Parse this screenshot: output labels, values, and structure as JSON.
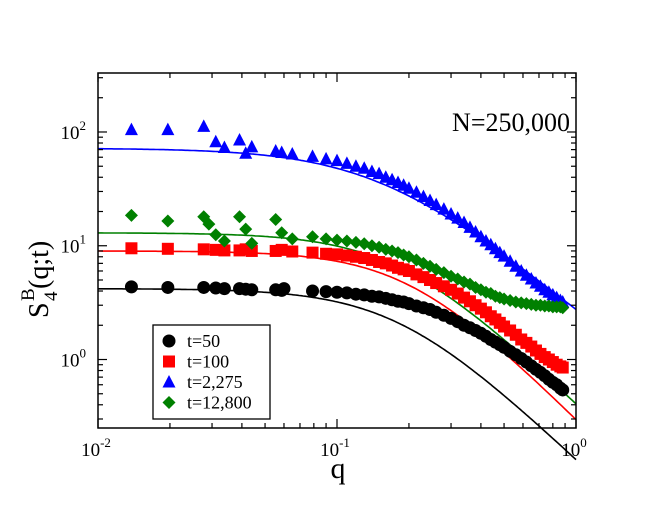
{
  "chart_data": {
    "type": "scatter",
    "title": "",
    "annotation": "N=250,000",
    "xlabel": "q",
    "ylabel": {
      "main": "S",
      "sub": "4",
      "sup": "B",
      "args": "(q;t)"
    },
    "xscale": "log",
    "yscale": "log",
    "xlim": [
      0.01,
      1
    ],
    "ylim": [
      0.25,
      330
    ],
    "x_ticks": [
      {
        "value": 0.01,
        "base": "10",
        "exp": "-2"
      },
      {
        "value": 0.1,
        "base": "10",
        "exp": "-1"
      },
      {
        "value": 1,
        "base": "10",
        "exp": "0"
      }
    ],
    "y_ticks": [
      {
        "value": 1,
        "base": "10",
        "exp": "0"
      },
      {
        "value": 10,
        "base": "10",
        "exp": "1"
      },
      {
        "value": 100,
        "base": "10",
        "exp": "2"
      }
    ],
    "legend_position": "bottom-left",
    "series": [
      {
        "name": "t=50",
        "marker": "circle",
        "color": "#000000",
        "points": [
          [
            0.0138,
            4.35
          ],
          [
            0.0196,
            4.3
          ],
          [
            0.0277,
            4.3
          ],
          [
            0.0311,
            4.25
          ],
          [
            0.0338,
            4.2
          ],
          [
            0.0391,
            4.2
          ],
          [
            0.0415,
            4.15
          ],
          [
            0.044,
            4.1
          ],
          [
            0.0554,
            4.1
          ],
          [
            0.0587,
            4.05
          ],
          [
            0.06,
            4.2
          ],
          [
            0.079,
            4.0
          ],
          [
            0.09,
            3.95
          ],
          [
            0.1,
            3.9
          ],
          [
            0.11,
            3.85
          ],
          [
            0.12,
            3.75
          ],
          [
            0.13,
            3.7
          ],
          [
            0.14,
            3.6
          ],
          [
            0.15,
            3.55
          ],
          [
            0.16,
            3.45
          ],
          [
            0.17,
            3.35
          ],
          [
            0.18,
            3.25
          ],
          [
            0.19,
            3.2
          ],
          [
            0.2,
            3.1
          ],
          [
            0.215,
            2.95
          ],
          [
            0.23,
            2.85
          ],
          [
            0.245,
            2.75
          ],
          [
            0.26,
            2.6
          ],
          [
            0.28,
            2.45
          ],
          [
            0.3,
            2.3
          ],
          [
            0.32,
            2.15
          ],
          [
            0.34,
            2.0
          ],
          [
            0.36,
            1.9
          ],
          [
            0.38,
            1.8
          ],
          [
            0.4,
            1.7
          ],
          [
            0.42,
            1.6
          ],
          [
            0.44,
            1.5
          ],
          [
            0.46,
            1.42
          ],
          [
            0.48,
            1.35
          ],
          [
            0.5,
            1.28
          ],
          [
            0.53,
            1.18
          ],
          [
            0.56,
            1.1
          ],
          [
            0.59,
            1.02
          ],
          [
            0.62,
            0.95
          ],
          [
            0.65,
            0.88
          ],
          [
            0.68,
            0.82
          ],
          [
            0.71,
            0.77
          ],
          [
            0.74,
            0.72
          ],
          [
            0.77,
            0.67
          ],
          [
            0.8,
            0.63
          ],
          [
            0.83,
            0.6
          ],
          [
            0.86,
            0.56
          ],
          [
            0.88,
            0.54
          ]
        ],
        "fit": {
          "A": 4.2,
          "q0": 0.18,
          "slope": 2
        }
      },
      {
        "name": "t=100",
        "marker": "square",
        "color": "#ff0000",
        "points": [
          [
            0.0138,
            9.5
          ],
          [
            0.0196,
            9.4
          ],
          [
            0.0277,
            9.3
          ],
          [
            0.0311,
            9.2
          ],
          [
            0.0338,
            9.1
          ],
          [
            0.0391,
            9.1
          ],
          [
            0.0415,
            9.3
          ],
          [
            0.044,
            9.0
          ],
          [
            0.0554,
            9.0
          ],
          [
            0.0587,
            9.2
          ],
          [
            0.065,
            8.9
          ],
          [
            0.079,
            8.7
          ],
          [
            0.09,
            8.5
          ],
          [
            0.1,
            8.4
          ],
          [
            0.11,
            8.2
          ],
          [
            0.12,
            8.0
          ],
          [
            0.13,
            7.8
          ],
          [
            0.14,
            7.5
          ],
          [
            0.15,
            7.2
          ],
          [
            0.16,
            7.0
          ],
          [
            0.17,
            6.7
          ],
          [
            0.18,
            6.4
          ],
          [
            0.19,
            6.2
          ],
          [
            0.2,
            6.0
          ],
          [
            0.215,
            5.6
          ],
          [
            0.23,
            5.3
          ],
          [
            0.245,
            5.0
          ],
          [
            0.26,
            4.7
          ],
          [
            0.28,
            4.4
          ],
          [
            0.3,
            4.1
          ],
          [
            0.32,
            3.8
          ],
          [
            0.34,
            3.5
          ],
          [
            0.36,
            3.25
          ],
          [
            0.38,
            3.0
          ],
          [
            0.4,
            2.8
          ],
          [
            0.42,
            2.6
          ],
          [
            0.44,
            2.4
          ],
          [
            0.46,
            2.25
          ],
          [
            0.48,
            2.1
          ],
          [
            0.5,
            1.95
          ],
          [
            0.53,
            1.8
          ],
          [
            0.56,
            1.65
          ],
          [
            0.59,
            1.5
          ],
          [
            0.62,
            1.4
          ],
          [
            0.65,
            1.3
          ],
          [
            0.68,
            1.2
          ],
          [
            0.71,
            1.12
          ],
          [
            0.74,
            1.05
          ],
          [
            0.77,
            1.0
          ],
          [
            0.8,
            0.95
          ],
          [
            0.83,
            0.9
          ],
          [
            0.86,
            0.87
          ],
          [
            0.88,
            0.85
          ]
        ],
        "fit": {
          "A": 9.0,
          "q0": 0.2,
          "slope": 2.1
        }
      },
      {
        "name": "t=2,275",
        "marker": "triangle",
        "color": "#0000ff",
        "points": [
          [
            0.0138,
            105
          ],
          [
            0.0196,
            105
          ],
          [
            0.0277,
            112
          ],
          [
            0.0311,
            82
          ],
          [
            0.0338,
            73
          ],
          [
            0.0391,
            85
          ],
          [
            0.0415,
            65
          ],
          [
            0.044,
            74
          ],
          [
            0.0554,
            68
          ],
          [
            0.0587,
            66
          ],
          [
            0.065,
            64
          ],
          [
            0.079,
            61
          ],
          [
            0.09,
            58
          ],
          [
            0.1,
            56
          ],
          [
            0.11,
            53
          ],
          [
            0.12,
            50
          ],
          [
            0.13,
            48
          ],
          [
            0.14,
            45
          ],
          [
            0.15,
            43
          ],
          [
            0.16,
            40
          ],
          [
            0.17,
            38
          ],
          [
            0.18,
            36
          ],
          [
            0.19,
            34
          ],
          [
            0.2,
            32
          ],
          [
            0.215,
            29.5
          ],
          [
            0.23,
            27
          ],
          [
            0.245,
            25
          ],
          [
            0.26,
            23
          ],
          [
            0.28,
            21
          ],
          [
            0.3,
            19
          ],
          [
            0.32,
            17.5
          ],
          [
            0.34,
            16
          ],
          [
            0.36,
            14.5
          ],
          [
            0.38,
            13.2
          ],
          [
            0.4,
            12
          ],
          [
            0.42,
            11
          ],
          [
            0.44,
            10.2
          ],
          [
            0.46,
            9.4
          ],
          [
            0.48,
            8.7
          ],
          [
            0.5,
            8.1
          ],
          [
            0.53,
            7.3
          ],
          [
            0.56,
            6.6
          ],
          [
            0.59,
            6.0
          ],
          [
            0.62,
            5.5
          ],
          [
            0.65,
            5.1
          ],
          [
            0.68,
            4.7
          ],
          [
            0.71,
            4.4
          ],
          [
            0.74,
            4.1
          ],
          [
            0.77,
            3.9
          ],
          [
            0.8,
            3.7
          ],
          [
            0.83,
            3.5
          ],
          [
            0.86,
            3.3
          ],
          [
            0.88,
            3.2
          ]
        ],
        "fit": {
          "A": 72,
          "q0": 0.15,
          "slope": 1.7
        }
      },
      {
        "name": "t=12,800",
        "marker": "diamond",
        "color": "#008000",
        "points": [
          [
            0.0138,
            18.5
          ],
          [
            0.0196,
            16.5
          ],
          [
            0.0277,
            18.0
          ],
          [
            0.0291,
            15.5
          ],
          [
            0.0311,
            12.5
          ],
          [
            0.0338,
            11
          ],
          [
            0.0391,
            18.0
          ],
          [
            0.0415,
            14
          ],
          [
            0.044,
            10.5
          ],
          [
            0.0554,
            17
          ],
          [
            0.0587,
            13
          ],
          [
            0.065,
            11.5
          ],
          [
            0.079,
            12
          ],
          [
            0.09,
            11.5
          ],
          [
            0.1,
            11.2
          ],
          [
            0.11,
            11
          ],
          [
            0.12,
            10.7
          ],
          [
            0.13,
            10.4
          ],
          [
            0.14,
            10.0
          ],
          [
            0.15,
            9.7
          ],
          [
            0.16,
            9.3
          ],
          [
            0.17,
            9.0
          ],
          [
            0.18,
            8.7
          ],
          [
            0.19,
            8.3
          ],
          [
            0.2,
            8.0
          ],
          [
            0.215,
            7.5
          ],
          [
            0.23,
            7.0
          ],
          [
            0.245,
            6.6
          ],
          [
            0.26,
            6.2
          ],
          [
            0.28,
            5.8
          ],
          [
            0.3,
            5.4
          ],
          [
            0.32,
            5.1
          ],
          [
            0.34,
            4.8
          ],
          [
            0.36,
            4.6
          ],
          [
            0.38,
            4.3
          ],
          [
            0.4,
            4.1
          ],
          [
            0.42,
            3.9
          ],
          [
            0.44,
            3.8
          ],
          [
            0.46,
            3.6
          ],
          [
            0.48,
            3.5
          ],
          [
            0.5,
            3.4
          ],
          [
            0.53,
            3.3
          ],
          [
            0.56,
            3.2
          ],
          [
            0.59,
            3.15
          ],
          [
            0.62,
            3.1
          ],
          [
            0.65,
            3.05
          ],
          [
            0.68,
            3.0
          ],
          [
            0.71,
            3.0
          ],
          [
            0.74,
            2.95
          ],
          [
            0.77,
            2.95
          ],
          [
            0.8,
            2.9
          ],
          [
            0.83,
            2.9
          ],
          [
            0.86,
            2.9
          ],
          [
            0.88,
            2.85
          ]
        ],
        "fit": {
          "A": 13,
          "q0": 0.18,
          "slope": 2.0
        }
      }
    ]
  }
}
